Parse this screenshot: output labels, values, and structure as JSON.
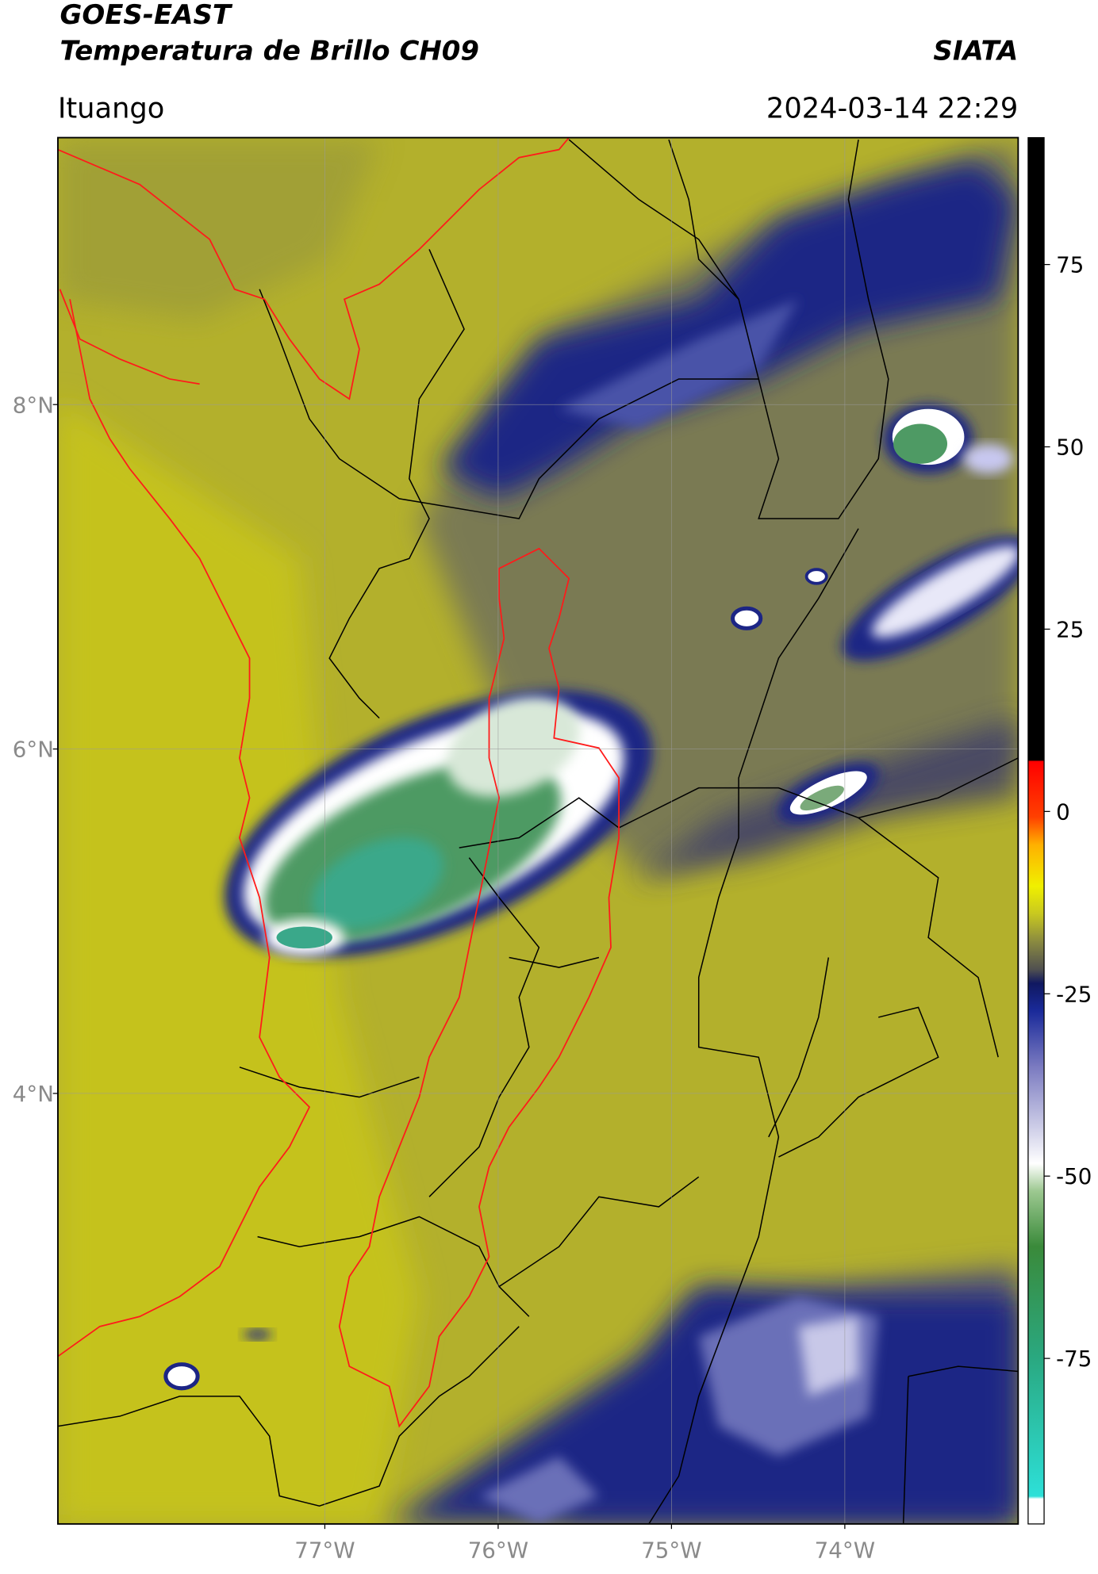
{
  "header": {
    "title": "GOES-EAST",
    "subtitle": "Temperatura de Brillo CH09",
    "source": "SIATA",
    "location": "Ituango",
    "datetime": "2024-03-14 22:29"
  },
  "chart_data": {
    "type": "map",
    "xlim": [
      -78.54,
      -73.0
    ],
    "ylim": [
      1.5,
      9.55
    ],
    "xticks": [
      {
        "value": -77,
        "label": "77°W"
      },
      {
        "value": -76,
        "label": "76°W"
      },
      {
        "value": -75,
        "label": "75°W"
      },
      {
        "value": -74,
        "label": "74°W"
      }
    ],
    "yticks": [
      {
        "value": 8,
        "label": "8°N"
      },
      {
        "value": 6,
        "label": "6°N"
      },
      {
        "value": 4,
        "label": "4°N"
      }
    ],
    "grid": true,
    "colorbar": {
      "lim": [
        -97.7,
        92.4
      ],
      "ticks": [
        75,
        50,
        25,
        0,
        -25,
        -50,
        -75
      ]
    }
  }
}
